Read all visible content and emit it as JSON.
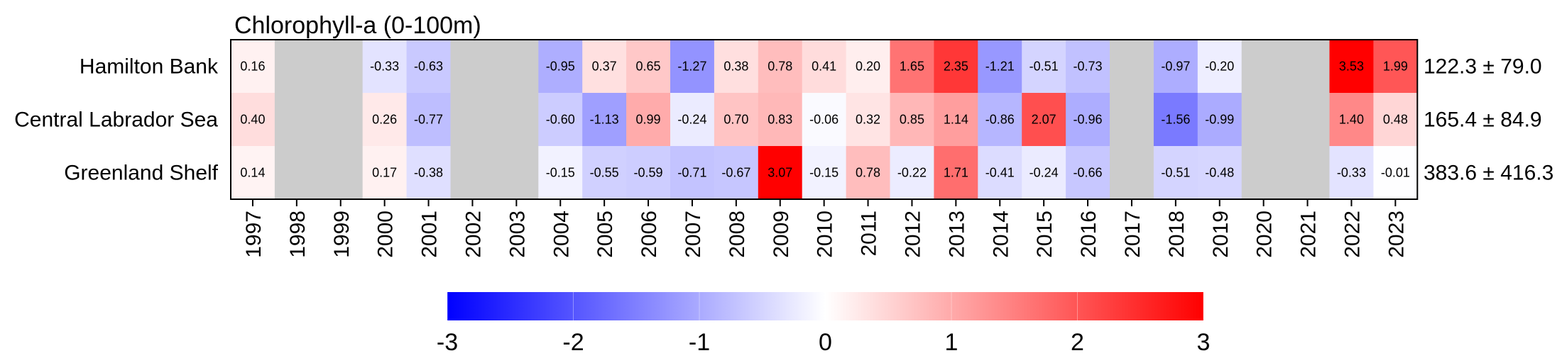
{
  "chart_data": {
    "type": "heatmap",
    "title": "Chlorophyll-a (0-100m)",
    "rows": [
      "Hamilton Bank",
      "Central Labrador Sea",
      "Greenland Shelf"
    ],
    "columns": [
      "1997",
      "1998",
      "1999",
      "2000",
      "2001",
      "2002",
      "2003",
      "2004",
      "2005",
      "2006",
      "2007",
      "2008",
      "2009",
      "2010",
      "2011",
      "2012",
      "2013",
      "2014",
      "2015",
      "2016",
      "2017",
      "2018",
      "2019",
      "2020",
      "2021",
      "2022",
      "2023"
    ],
    "values": [
      [
        0.16,
        null,
        null,
        -0.33,
        -0.63,
        null,
        null,
        -0.95,
        0.37,
        0.65,
        -1.27,
        0.38,
        0.78,
        0.41,
        0.2,
        1.65,
        2.35,
        -1.21,
        -0.51,
        -0.73,
        null,
        -0.97,
        -0.2,
        null,
        null,
        3.53,
        1.99
      ],
      [
        0.4,
        null,
        null,
        0.26,
        -0.77,
        null,
        null,
        -0.6,
        -1.13,
        0.99,
        -0.24,
        0.7,
        0.83,
        -0.06,
        0.32,
        0.85,
        1.14,
        -0.86,
        2.07,
        -0.96,
        null,
        -1.56,
        -0.99,
        null,
        null,
        1.4,
        0.48
      ],
      [
        0.14,
        null,
        null,
        0.17,
        -0.38,
        null,
        null,
        -0.15,
        -0.55,
        -0.59,
        -0.71,
        -0.67,
        3.07,
        -0.15,
        0.78,
        -0.22,
        1.71,
        -0.41,
        -0.24,
        -0.66,
        null,
        -0.51,
        -0.48,
        null,
        null,
        -0.33,
        -0.01
      ]
    ],
    "row_stats": [
      "122.3 ± 79.0",
      "165.4 ± 84.9",
      "383.6 ± 416.3"
    ],
    "colorbar": {
      "min": -3,
      "max": 3,
      "ticks": [
        -3,
        -2,
        -1,
        0,
        1,
        2,
        3
      ],
      "low_color": "#0000ff",
      "mid_color": "#ffffff",
      "high_color": "#ff0000",
      "missing_color": "#cccccc"
    },
    "legend_placement": "bottom",
    "grid": false
  }
}
